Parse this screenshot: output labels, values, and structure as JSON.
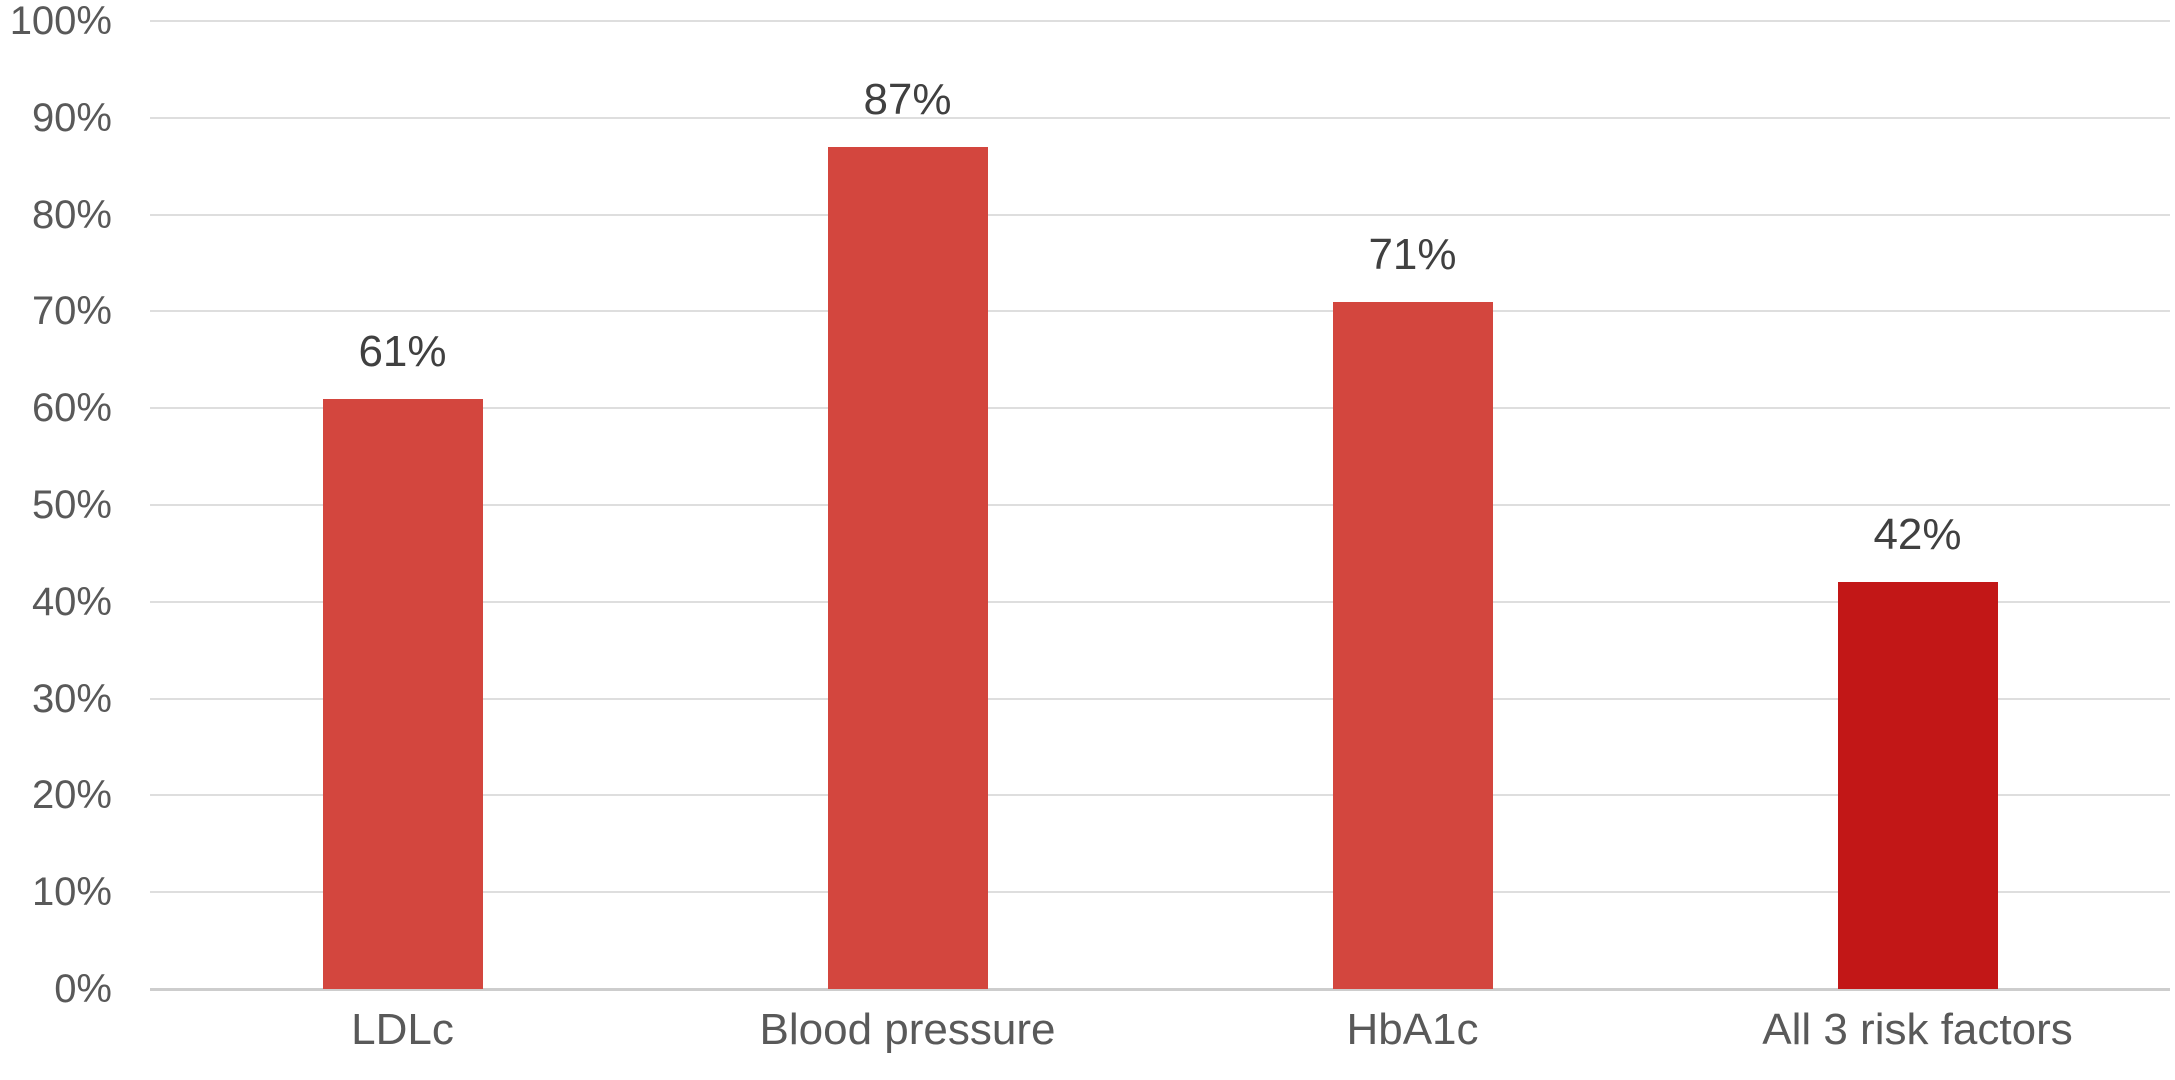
{
  "chart_data": {
    "type": "bar",
    "title": "",
    "xlabel": "",
    "ylabel": "",
    "categories": [
      "LDLc",
      "Blood pressure",
      "HbA1c",
      "All 3 risk factors"
    ],
    "values": [
      61,
      87,
      71,
      42
    ],
    "data_labels": [
      "61%",
      "87%",
      "71%",
      "42%"
    ],
    "ylim": [
      0,
      100
    ],
    "y_tick_step": 10,
    "y_tick_labels": [
      "0%",
      "10%",
      "20%",
      "30%",
      "40%",
      "50%",
      "60%",
      "70%",
      "80%",
      "90%",
      "100%"
    ],
    "grid": true,
    "legend": false,
    "bar_colors": [
      "#D3463E",
      "#D3463E",
      "#D3463E",
      "#C21717"
    ]
  },
  "colors": {
    "background": "#FFFFFF",
    "gridline": "#DEDEDE",
    "axis_line": "#CDCDCD",
    "tick_text": "#595959",
    "data_label_text": "#404040",
    "category_text": "#595959"
  }
}
